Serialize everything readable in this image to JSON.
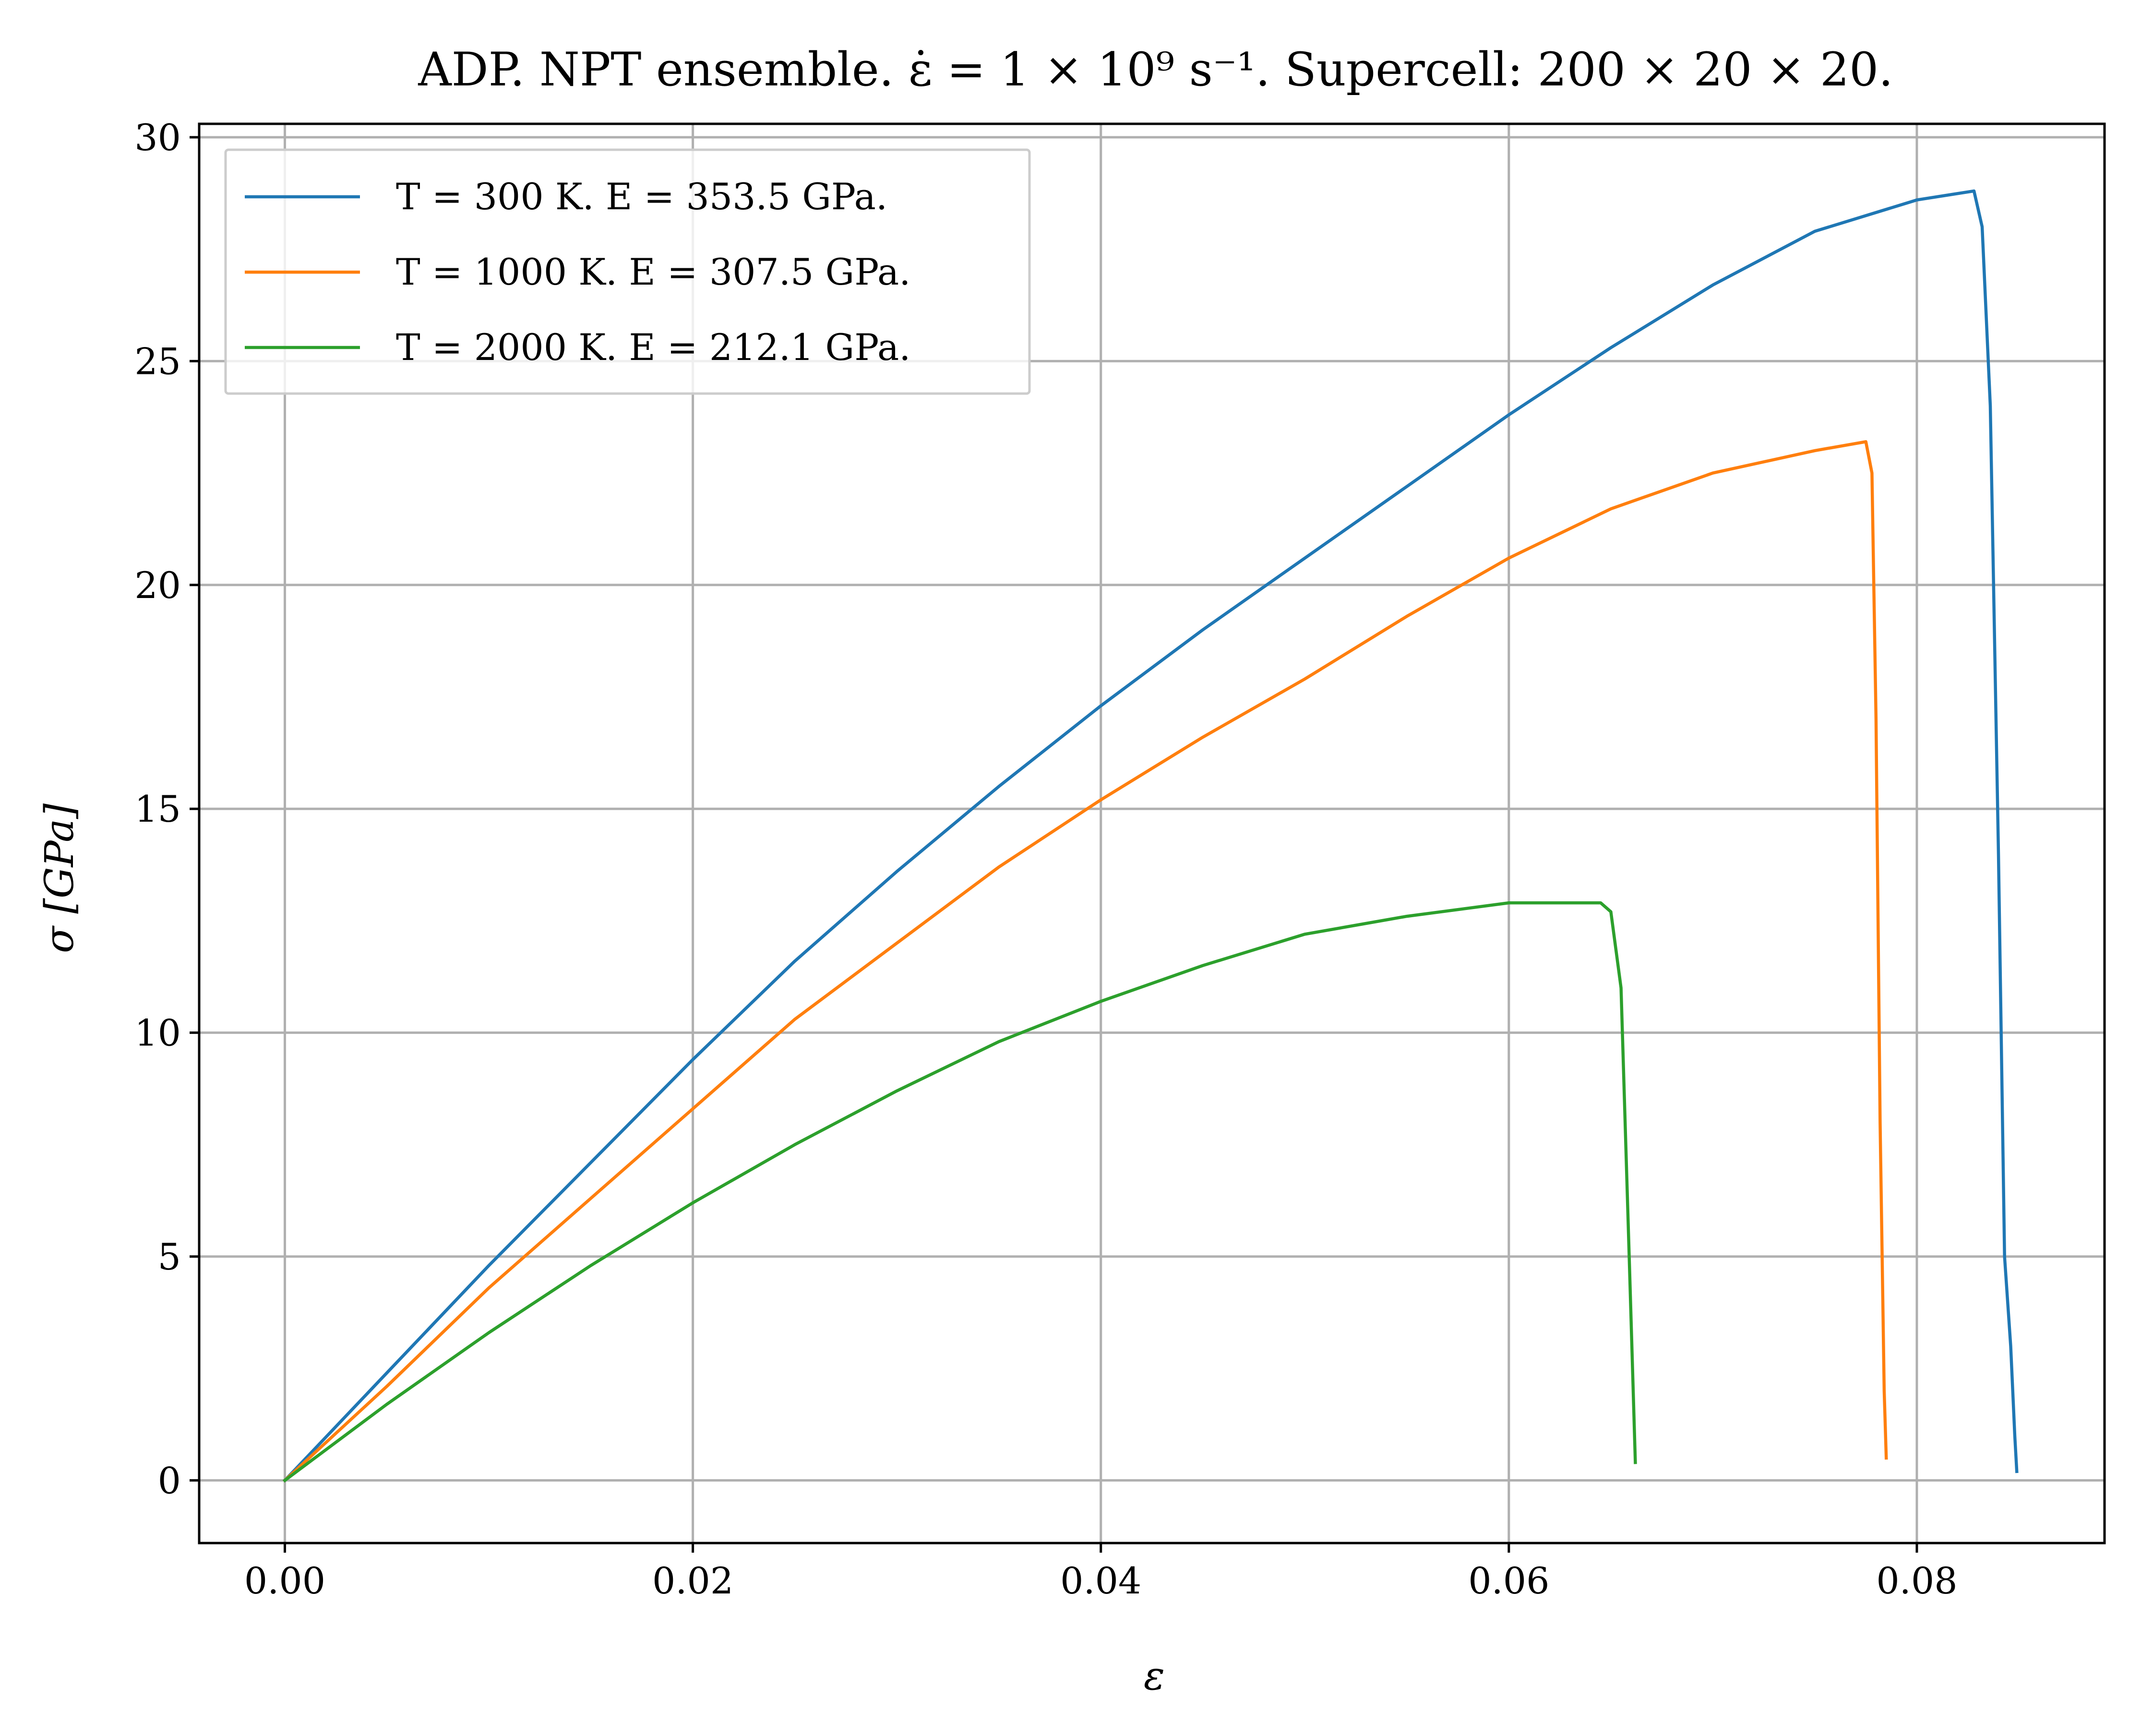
{
  "chart_data": {
    "type": "line",
    "title": "ADP. NPT ensemble. ε̇ = 1 × 10⁹ s⁻¹. Supercell: 200 × 20 × 20.",
    "xlabel": "ε",
    "ylabel": "σ [GPa]",
    "xlim": [
      -0.0042,
      0.0892
    ],
    "ylim": [
      -1.4,
      30.3
    ],
    "xticks": [
      0.0,
      0.02,
      0.04,
      0.06,
      0.08
    ],
    "xtick_labels": [
      "0.00",
      "0.02",
      "0.04",
      "0.06",
      "0.08"
    ],
    "yticks": [
      0,
      5,
      10,
      15,
      20,
      25,
      30
    ],
    "ytick_labels": [
      "0",
      "5",
      "10",
      "15",
      "20",
      "25",
      "30"
    ],
    "grid": true,
    "legend_position": "top-left",
    "series": [
      {
        "name": "T = 300 K. E = 353.5 GPa.",
        "color": "#1f77b4",
        "x": [
          0,
          0.005,
          0.01,
          0.015,
          0.02,
          0.025,
          0.03,
          0.035,
          0.04,
          0.045,
          0.05,
          0.055,
          0.06,
          0.065,
          0.07,
          0.075,
          0.08,
          0.0828,
          0.0832,
          0.0836,
          0.084,
          0.0843,
          0.0846,
          0.0848,
          0.0849
        ],
        "y": [
          0,
          2.4,
          4.8,
          7.1,
          9.4,
          11.6,
          13.6,
          15.5,
          17.3,
          19.0,
          20.6,
          22.2,
          23.8,
          25.3,
          26.7,
          27.9,
          28.6,
          28.8,
          28.0,
          24.0,
          14.0,
          5.0,
          3.0,
          1.0,
          0.2
        ]
      },
      {
        "name": "T = 1000 K. E = 307.5 GPa.",
        "color": "#ff7f0e",
        "x": [
          0,
          0.005,
          0.01,
          0.015,
          0.02,
          0.025,
          0.03,
          0.035,
          0.04,
          0.045,
          0.05,
          0.055,
          0.06,
          0.065,
          0.07,
          0.075,
          0.0775,
          0.0778,
          0.078,
          0.0782,
          0.0784,
          0.0785
        ],
        "y": [
          0,
          2.1,
          4.3,
          6.3,
          8.3,
          10.3,
          12.0,
          13.7,
          15.2,
          16.6,
          17.9,
          19.3,
          20.6,
          21.7,
          22.5,
          23.0,
          23.2,
          22.5,
          17.0,
          8.0,
          2.0,
          0.5
        ]
      },
      {
        "name": "T = 2000 K. E = 212.1 GPa.",
        "color": "#2ca02c",
        "x": [
          0,
          0.005,
          0.01,
          0.015,
          0.02,
          0.025,
          0.03,
          0.035,
          0.04,
          0.045,
          0.05,
          0.055,
          0.06,
          0.0645,
          0.065,
          0.0655,
          0.0659,
          0.0662
        ],
        "y": [
          0,
          1.7,
          3.3,
          4.8,
          6.2,
          7.5,
          8.7,
          9.8,
          10.7,
          11.5,
          12.2,
          12.6,
          12.9,
          12.9,
          12.7,
          11.0,
          5.0,
          0.4
        ]
      }
    ]
  }
}
